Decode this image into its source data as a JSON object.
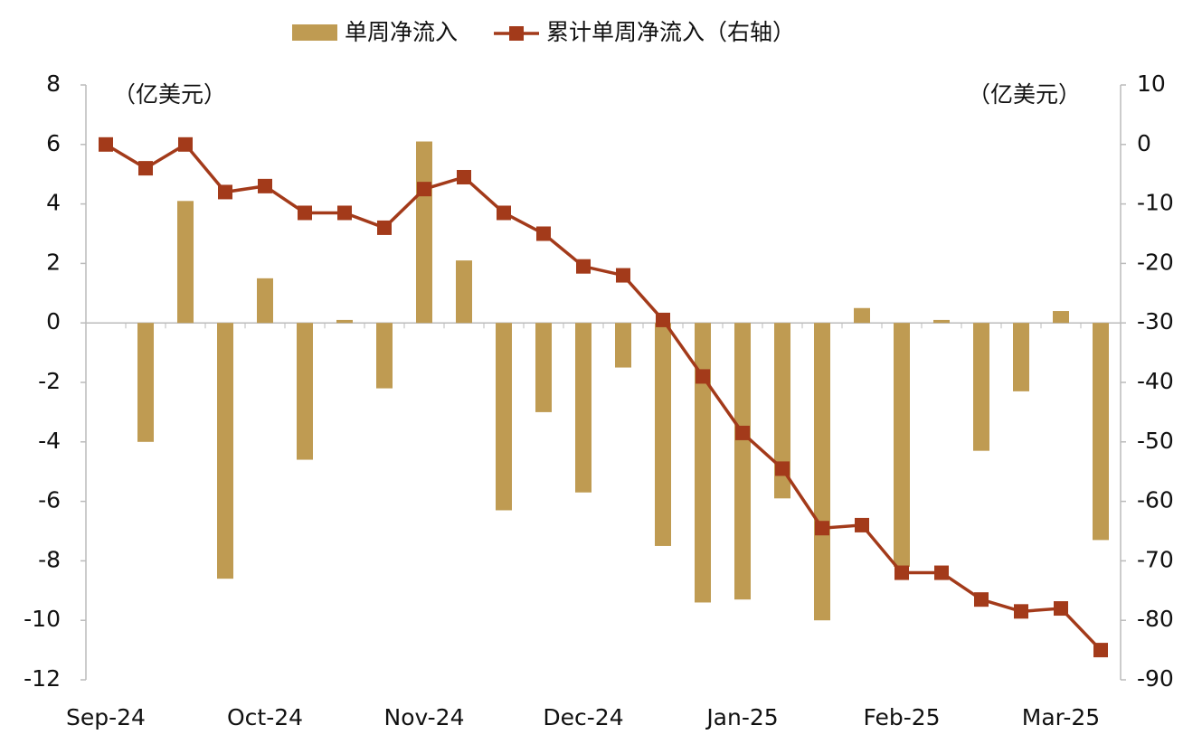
{
  "chart_data": {
    "type": "bar-line",
    "y_unit_label": "（亿美元）",
    "y2_unit_label": "（亿美元）",
    "categories": [
      "Sep-24",
      null,
      null,
      null,
      "Oct-24",
      null,
      null,
      null,
      "Nov-24",
      null,
      null,
      null,
      "Dec-24",
      null,
      null,
      null,
      "Jan-25",
      null,
      null,
      null,
      "Feb-25",
      null,
      null,
      null,
      "Mar-25",
      null
    ],
    "series": [
      {
        "name": "单周净流入",
        "type": "bar",
        "color": "#bf9b52",
        "values": [
          0,
          -4,
          4.1,
          -8.6,
          1.5,
          -4.6,
          0.1,
          -2.2,
          6.1,
          2.1,
          -6.3,
          -3,
          -5.7,
          -1.5,
          -7.5,
          -9.4,
          -9.3,
          -5.9,
          -10,
          0.5,
          -8.2,
          0.1,
          -4.3,
          -2.3,
          0.4,
          -7.3
        ]
      },
      {
        "name": "累计单周净流入（右轴）",
        "type": "line",
        "axis": "y2",
        "color": "#a33a1a",
        "values": [
          0,
          -4,
          0,
          -8,
          -7,
          -11.5,
          -11.5,
          -14,
          -7.5,
          -5.5,
          -11.5,
          -15,
          -20.5,
          -22,
          -29.5,
          -39,
          -48.5,
          -54.5,
          -64.5,
          -64,
          -72,
          -72,
          -76.5,
          -78.5,
          -78,
          -85
        ]
      }
    ],
    "ylim": [
      -12,
      8
    ],
    "yticks": [
      8,
      6,
      4,
      2,
      0,
      -2,
      -4,
      -6,
      -8,
      -10,
      -12
    ],
    "y2lim": [
      -90,
      10
    ],
    "y2ticks": [
      10,
      0,
      -10,
      -20,
      -30,
      -40,
      -50,
      -60,
      -70,
      -80,
      -90
    ],
    "legend": "top"
  }
}
